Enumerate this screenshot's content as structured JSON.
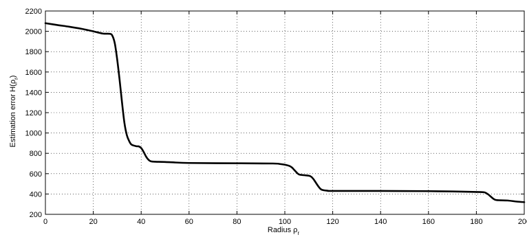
{
  "chart_data": {
    "type": "line",
    "title": "",
    "xlabel": {
      "base": "Radius ρ",
      "sub": "r"
    },
    "ylabel": {
      "base": "Estimation error H(ρ",
      "sub": "r",
      "tail": ")"
    },
    "xlim": [
      0,
      200
    ],
    "ylim": [
      200,
      2200
    ],
    "xticks": [
      0,
      20,
      40,
      60,
      80,
      100,
      120,
      140,
      160,
      180,
      200
    ],
    "yticks": [
      200,
      400,
      600,
      800,
      1000,
      1200,
      1400,
      1600,
      1800,
      2000,
      2200
    ],
    "grid": true,
    "series": [
      {
        "color": "#000000",
        "points": [
          [
            0,
            2080
          ],
          [
            5,
            2062
          ],
          [
            10,
            2045
          ],
          [
            15,
            2025
          ],
          [
            20,
            2000
          ],
          [
            24,
            1978
          ],
          [
            27,
            1975
          ],
          [
            28,
            1955
          ],
          [
            29,
            1880
          ],
          [
            30,
            1720
          ],
          [
            31,
            1520
          ],
          [
            32,
            1300
          ],
          [
            33,
            1100
          ],
          [
            34,
            980
          ],
          [
            35,
            920
          ],
          [
            36,
            885
          ],
          [
            38,
            870
          ],
          [
            39,
            868
          ],
          [
            40,
            852
          ],
          [
            41,
            815
          ],
          [
            42,
            770
          ],
          [
            43,
            738
          ],
          [
            44,
            722
          ],
          [
            46,
            717
          ],
          [
            50,
            715
          ],
          [
            60,
            705
          ],
          [
            80,
            702
          ],
          [
            95,
            700
          ],
          [
            98,
            695
          ],
          [
            100,
            688
          ],
          [
            102,
            675
          ],
          [
            103,
            660
          ],
          [
            104,
            635
          ],
          [
            105,
            610
          ],
          [
            106,
            592
          ],
          [
            108,
            585
          ],
          [
            110,
            580
          ],
          [
            111,
            570
          ],
          [
            112,
            545
          ],
          [
            113,
            510
          ],
          [
            114,
            475
          ],
          [
            115,
            448
          ],
          [
            116,
            438
          ],
          [
            118,
            432
          ],
          [
            120,
            430
          ],
          [
            140,
            430
          ],
          [
            160,
            428
          ],
          [
            170,
            425
          ],
          [
            180,
            420
          ],
          [
            183,
            418
          ],
          [
            184,
            410
          ],
          [
            185,
            395
          ],
          [
            186,
            375
          ],
          [
            187,
            355
          ],
          [
            188,
            342
          ],
          [
            190,
            338
          ],
          [
            193,
            336
          ],
          [
            197,
            325
          ],
          [
            200,
            320
          ]
        ]
      }
    ]
  }
}
